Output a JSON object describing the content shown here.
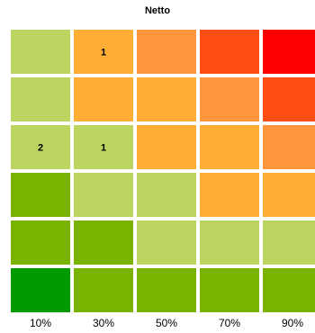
{
  "chart_data": {
    "type": "heatmap",
    "title": "Netto",
    "xlabel": "",
    "ylabel": "",
    "x_ticks": [
      "10%",
      "30%",
      "50%",
      "70%",
      "90%"
    ],
    "rows": [
      {
        "colors": [
          "#bbd460",
          "#ffae35",
          "#ff963e",
          "#ff4e14",
          "#ff0000"
        ],
        "labels": [
          "",
          "1",
          "",
          "",
          ""
        ]
      },
      {
        "colors": [
          "#bbd460",
          "#ffae35",
          "#ffae35",
          "#ff963e",
          "#ff4e14"
        ],
        "labels": [
          "",
          "",
          "",
          "",
          ""
        ]
      },
      {
        "colors": [
          "#bbd460",
          "#bbd460",
          "#ffae35",
          "#ffae35",
          "#ff963e"
        ],
        "labels": [
          "2",
          "1",
          "",
          "",
          ""
        ]
      },
      {
        "colors": [
          "#79b300",
          "#bbd460",
          "#bbd460",
          "#ffae35",
          "#ffae35"
        ],
        "labels": [
          "",
          "",
          "",
          "",
          ""
        ]
      },
      {
        "colors": [
          "#79b300",
          "#79b300",
          "#bbd460",
          "#bbd460",
          "#bbd460"
        ],
        "labels": [
          "",
          "",
          "",
          "",
          ""
        ]
      },
      {
        "colors": [
          "#009900",
          "#79b300",
          "#79b300",
          "#79b300",
          "#79b300"
        ],
        "labels": [
          "",
          "",
          "",
          "",
          ""
        ]
      }
    ],
    "grid": false,
    "legend": "none"
  }
}
